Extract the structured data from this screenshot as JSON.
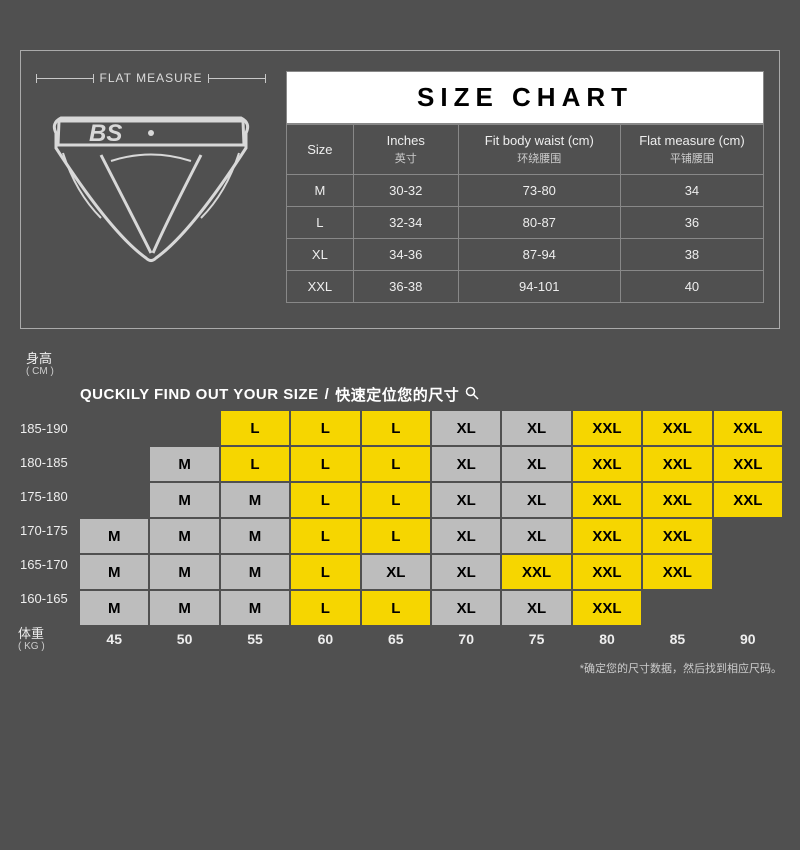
{
  "top": {
    "flat_measure_label": "FLAT  MEASURE",
    "title": "SIZE CHART",
    "columns": [
      {
        "main": "Size",
        "sub": ""
      },
      {
        "main": "Inches",
        "sub": "英寸"
      },
      {
        "main": "Fit body waist (cm)",
        "sub": "环绕腰围"
      },
      {
        "main": "Flat measure (cm)",
        "sub": "平铺腰围"
      }
    ],
    "rows": [
      [
        "M",
        "30-32",
        "73-80",
        "34"
      ],
      [
        "L",
        "32-34",
        "80-87",
        "36"
      ],
      [
        "XL",
        "34-36",
        "87-94",
        "38"
      ],
      [
        "XXL",
        "36-38",
        "94-101",
        "40"
      ]
    ]
  },
  "quick": {
    "title_en": "QUCKILY FIND OUT YOUR SIZE",
    "title_zh": "快速定位您的尺寸",
    "height_label": "身高",
    "height_unit": "( CM )",
    "weight_label": "体重",
    "weight_unit": "( KG )",
    "heights": [
      "185-190",
      "180-185",
      "175-180",
      "170-175",
      "165-170",
      "160-165"
    ],
    "weights": [
      "45",
      "50",
      "55",
      "60",
      "65",
      "70",
      "75",
      "80",
      "85",
      "90"
    ],
    "grid": [
      [
        "",
        "",
        "L",
        "L",
        "L",
        "XL",
        "XL",
        "XXL",
        "XXL",
        "XXL"
      ],
      [
        "",
        "M",
        "L",
        "L",
        "L",
        "XL",
        "XL",
        "XXL",
        "XXL",
        "XXL"
      ],
      [
        "",
        "M",
        "M",
        "L",
        "L",
        "XL",
        "XL",
        "XXL",
        "XXL",
        "XXL"
      ],
      [
        "M",
        "M",
        "M",
        "L",
        "L",
        "XL",
        "XL",
        "XXL",
        "XXL",
        ""
      ],
      [
        "M",
        "M",
        "M",
        "L",
        "XL",
        "XL",
        "XXL",
        "XXL",
        "XXL",
        ""
      ],
      [
        "M",
        "M",
        "M",
        "L",
        "L",
        "XL",
        "XL",
        "XXL",
        "",
        ""
      ]
    ],
    "colors": [
      [
        "",
        "",
        "y",
        "y",
        "y",
        "g",
        "g",
        "y",
        "y",
        "y"
      ],
      [
        "",
        "g",
        "y",
        "y",
        "y",
        "g",
        "g",
        "y",
        "y",
        "y"
      ],
      [
        "",
        "g",
        "g",
        "y",
        "y",
        "g",
        "g",
        "y",
        "y",
        "y"
      ],
      [
        "g",
        "g",
        "g",
        "y",
        "y",
        "g",
        "g",
        "y",
        "y",
        ""
      ],
      [
        "g",
        "g",
        "g",
        "y",
        "g",
        "g",
        "y",
        "y",
        "y",
        ""
      ],
      [
        "g",
        "g",
        "g",
        "y",
        "y",
        "g",
        "g",
        "y",
        "",
        ""
      ]
    ],
    "footnote": "*确定您的尺寸数据，然后找到相应尺码。"
  },
  "style": {
    "bg": "#505050",
    "panel_border": "#aaaaaa",
    "cell_gray": "#bdbdbd",
    "cell_yellow": "#f6d600",
    "title_bg": "#ffffff"
  }
}
